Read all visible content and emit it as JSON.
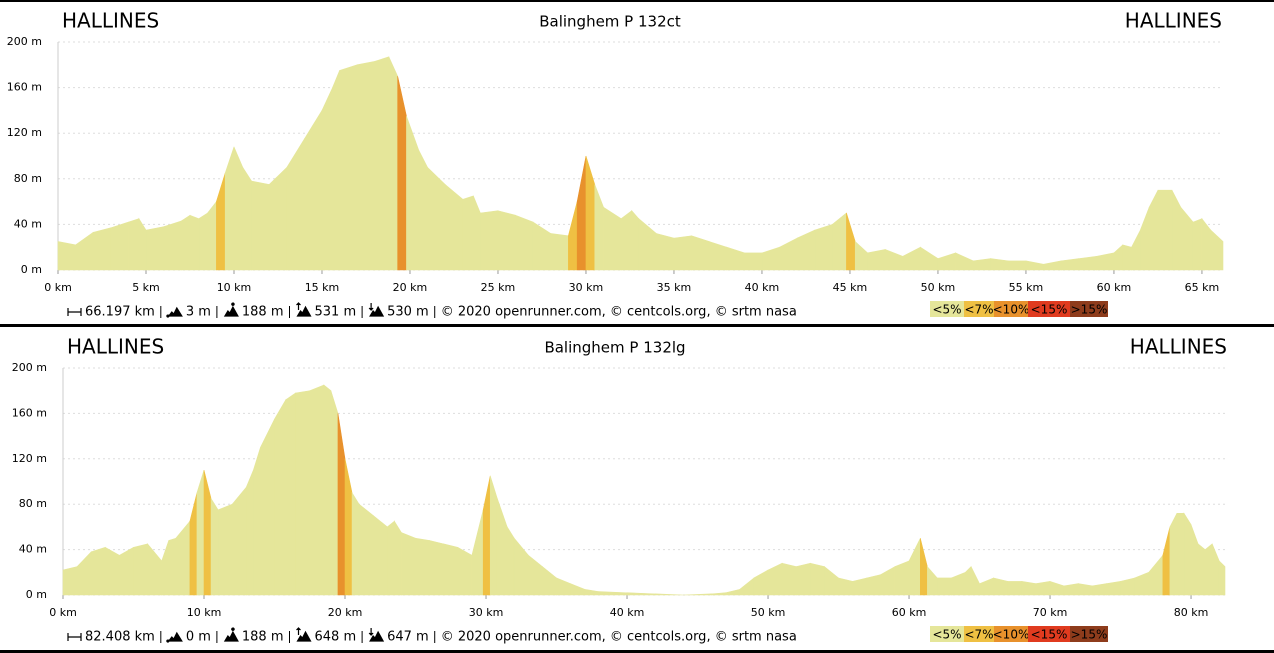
{
  "chart_data": [
    {
      "type": "elevation",
      "title": "Balinghem P 132ct",
      "start_label": "HALLINES",
      "end_label": "HALLINES",
      "x": [
        0,
        1,
        2,
        3,
        4,
        4.6,
        5,
        6,
        7,
        7.5,
        8,
        8.5,
        9,
        9.5,
        10,
        10.5,
        11,
        12,
        13,
        14,
        15,
        15.6,
        16,
        17,
        18,
        18.8,
        19.3,
        19.8,
        20.5,
        21,
        22,
        23,
        23.6,
        24,
        25,
        26,
        27,
        28,
        29,
        29.5,
        30,
        30.5,
        31,
        32,
        32.6,
        33,
        34,
        35,
        36,
        37,
        38,
        39,
        40,
        41,
        42,
        43,
        44,
        44.8,
        45.3,
        46,
        47,
        48,
        49,
        50,
        51,
        52,
        53,
        54,
        55,
        56,
        57,
        58,
        59,
        60,
        60.5,
        61,
        61.5,
        62,
        62.5,
        63.3,
        63.8,
        64.5,
        65,
        65.5,
        66.197
      ],
      "values": [
        25,
        22,
        33,
        37,
        42,
        45,
        35,
        38,
        43,
        48,
        45,
        50,
        60,
        85,
        108,
        90,
        78,
        75,
        90,
        115,
        140,
        160,
        175,
        180,
        183,
        187,
        170,
        135,
        105,
        90,
        75,
        62,
        65,
        50,
        52,
        48,
        42,
        32,
        30,
        60,
        100,
        75,
        55,
        45,
        52,
        45,
        32,
        28,
        30,
        25,
        20,
        15,
        15,
        20,
        28,
        35,
        40,
        50,
        25,
        15,
        18,
        12,
        20,
        10,
        15,
        8,
        10,
        8,
        8,
        5,
        8,
        10,
        12,
        15,
        22,
        20,
        35,
        55,
        70,
        70,
        55,
        42,
        45,
        35,
        25
      ],
      "xlim": [
        0,
        66.197
      ],
      "ylim": [
        0,
        200
      ],
      "xticks": [
        {
          "value": 0,
          "label": "0 km"
        },
        {
          "value": 5,
          "label": "5 km"
        },
        {
          "value": 10,
          "label": "10 km"
        },
        {
          "value": 15,
          "label": "15 km"
        },
        {
          "value": 20,
          "label": "20 km"
        },
        {
          "value": 25,
          "label": "25 km"
        },
        {
          "value": 30,
          "label": "30 km"
        },
        {
          "value": 35,
          "label": "35 km"
        },
        {
          "value": 40,
          "label": "40 km"
        },
        {
          "value": 45,
          "label": "45 km"
        },
        {
          "value": 50,
          "label": "50 km"
        },
        {
          "value": 55,
          "label": "55 km"
        },
        {
          "value": 60,
          "label": "60 km"
        },
        {
          "value": 65,
          "label": "65 km"
        }
      ],
      "yticks": [
        {
          "value": 0,
          "label": "0 m"
        },
        {
          "value": 40,
          "label": "40 m"
        },
        {
          "value": 80,
          "label": "80 m"
        },
        {
          "value": 120,
          "label": "120 m"
        },
        {
          "value": 160,
          "label": "160 m"
        },
        {
          "value": 200,
          "label": "200 m"
        }
      ],
      "grid": true,
      "stats": [
        "66.197 km",
        "3 m",
        "188 m",
        "531 m",
        "530 m"
      ],
      "credits": "© 2020 openrunner.com, © centcols.org, © srtm nasa",
      "gradient_classes": [
        {
          "label": "<5%",
          "max": 5,
          "color": "#e5e69a"
        },
        {
          "label": "<7%",
          "max": 7,
          "color": "#efc043"
        },
        {
          "label": "<10%",
          "max": 10,
          "color": "#e8912c"
        },
        {
          "label": "<15%",
          "max": 15,
          "color": "#e03b1f"
        },
        {
          "label": ">15%",
          "min": 15,
          "color": "#8e3c1c"
        }
      ]
    },
    {
      "type": "elevation",
      "title": "Balinghem P 132lg",
      "start_label": "HALLINES",
      "end_label": "HALLINES",
      "x": [
        0,
        1,
        2,
        3,
        4,
        5,
        6,
        7,
        7.5,
        8,
        9,
        9.5,
        10,
        10.5,
        11,
        12,
        13,
        13.5,
        14,
        15,
        15.8,
        16.5,
        17.5,
        18.5,
        19,
        19.5,
        20,
        20.5,
        21,
        22,
        23,
        23.5,
        24,
        25,
        26,
        27,
        28,
        29,
        29.8,
        30.3,
        30.8,
        31.5,
        32,
        33,
        34,
        35,
        36,
        37,
        38,
        40,
        42,
        44,
        46,
        47,
        48,
        49,
        50,
        51,
        52,
        53,
        54,
        55,
        56,
        57,
        58,
        59,
        60,
        60.8,
        61.3,
        62,
        63,
        64,
        64.4,
        65,
        66,
        67,
        68,
        69,
        70,
        71,
        72,
        73,
        74,
        75,
        76,
        77,
        78,
        78.5,
        79,
        79.5,
        80,
        80.5,
        81,
        81.5,
        82,
        82.408
      ],
      "values": [
        22,
        25,
        38,
        42,
        35,
        42,
        45,
        30,
        48,
        50,
        65,
        90,
        110,
        85,
        75,
        80,
        95,
        110,
        130,
        155,
        172,
        178,
        180,
        185,
        180,
        160,
        120,
        90,
        80,
        70,
        60,
        65,
        55,
        50,
        48,
        45,
        42,
        35,
        75,
        105,
        85,
        60,
        50,
        35,
        25,
        15,
        10,
        5,
        3,
        2,
        1,
        0,
        1,
        2,
        5,
        15,
        22,
        28,
        25,
        28,
        25,
        15,
        12,
        15,
        18,
        25,
        30,
        50,
        25,
        15,
        15,
        20,
        25,
        10,
        15,
        12,
        12,
        10,
        12,
        8,
        10,
        8,
        10,
        12,
        15,
        20,
        35,
        60,
        72,
        72,
        62,
        45,
        40,
        45,
        30,
        25
      ],
      "xlim": [
        0,
        82.408
      ],
      "ylim": [
        0,
        200
      ],
      "xticks": [
        {
          "value": 0,
          "label": "0 km"
        },
        {
          "value": 10,
          "label": "10 km"
        },
        {
          "value": 20,
          "label": "20 km"
        },
        {
          "value": 30,
          "label": "30 km"
        },
        {
          "value": 40,
          "label": "40 km"
        },
        {
          "value": 50,
          "label": "50 km"
        },
        {
          "value": 60,
          "label": "60 km"
        },
        {
          "value": 70,
          "label": "70 km"
        },
        {
          "value": 80,
          "label": "80 km"
        }
      ],
      "yticks": [
        {
          "value": 0,
          "label": "0 m"
        },
        {
          "value": 40,
          "label": "40 m"
        },
        {
          "value": 80,
          "label": "80 m"
        },
        {
          "value": 120,
          "label": "120 m"
        },
        {
          "value": 160,
          "label": "160 m"
        },
        {
          "value": 200,
          "label": "200 m"
        }
      ],
      "grid": true,
      "stats": [
        "82.408 km",
        "0 m",
        "188 m",
        "648 m",
        "647 m"
      ],
      "credits": "© 2020 openrunner.com, © centcols.org, © srtm nasa",
      "gradient_classes": [
        {
          "label": "<5%",
          "max": 5,
          "color": "#e5e69a"
        },
        {
          "label": "<7%",
          "max": 7,
          "color": "#efc043"
        },
        {
          "label": "<10%",
          "max": 10,
          "color": "#e8912c"
        },
        {
          "label": "<15%",
          "max": 15,
          "color": "#e03b1f"
        },
        {
          "label": ">15%",
          "min": 15,
          "color": "#8e3c1c"
        }
      ]
    }
  ]
}
